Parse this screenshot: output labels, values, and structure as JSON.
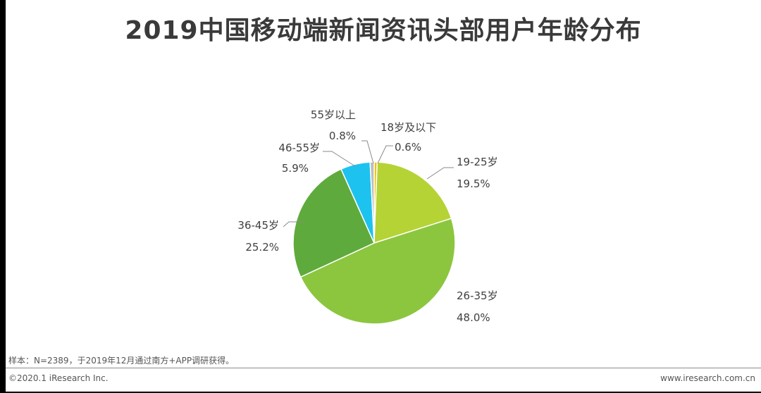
{
  "header": {
    "title": "2019中国移动端新闻资讯头部用户年龄分布"
  },
  "chart_data": {
    "type": "pie",
    "title": "2019中国移动端新闻资讯头部用户年龄分布",
    "categories": [
      "18岁及以下",
      "19-25岁",
      "26-35岁",
      "36-45岁",
      "46-55岁",
      "55岁以上"
    ],
    "values": [
      0.6,
      19.5,
      48.0,
      25.2,
      5.9,
      0.8
    ],
    "value_labels": [
      "0.6%",
      "19.5%",
      "48.0%",
      "25.2%",
      "5.9%",
      "0.8%"
    ],
    "colors": [
      "#f2c200",
      "#b5d334",
      "#8cc63f",
      "#5faa3c",
      "#1ec2ef",
      "#bdbdbd"
    ],
    "start_angle_deg": 0,
    "direction": "clockwise",
    "legend": "none (callout labels)"
  },
  "footnote": {
    "text": "样本：N=2389，于2019年12月通过南方+APP调研获得。"
  },
  "footer": {
    "copyright": "©2020.1 iResearch Inc.",
    "website": "www.iresearch.com.cn"
  }
}
